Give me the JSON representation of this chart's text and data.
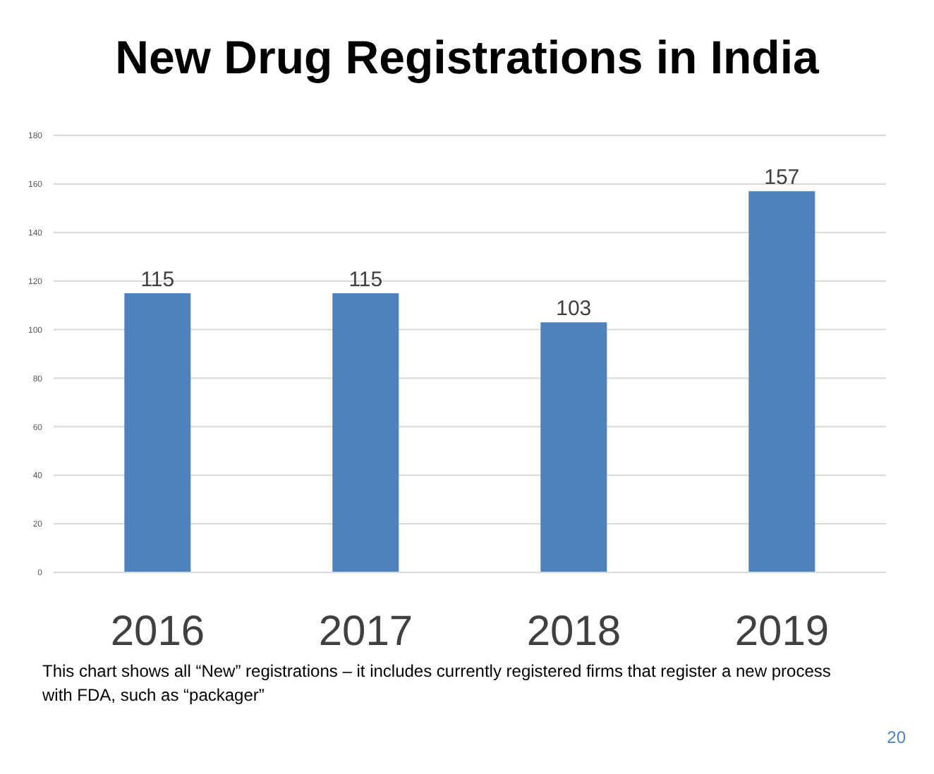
{
  "chart_data": {
    "type": "bar",
    "title": "New Drug Registrations in India",
    "categories": [
      "2016",
      "2017",
      "2018",
      "2019"
    ],
    "values": [
      115,
      115,
      103,
      157
    ],
    "color": "#4f81bd",
    "ylim": [
      0,
      180
    ],
    "yticks": [
      0,
      20,
      40,
      60,
      80,
      100,
      120,
      140,
      160,
      180
    ],
    "grid": "y",
    "data_labels": true,
    "annotations": [
      "This chart shows all “New” registrations – it includes currently registered firms that register a new process with FDA, such as “packager”",
      "20"
    ]
  }
}
